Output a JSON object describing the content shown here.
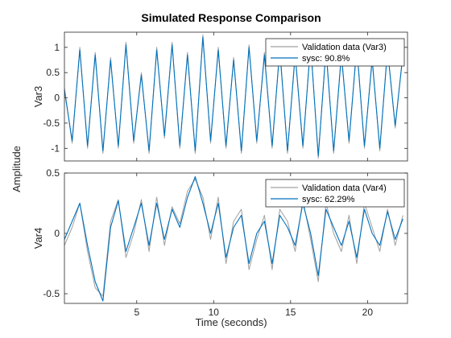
{
  "chart_data": {
    "type": "line",
    "title": "Simulated Response Comparison",
    "xlabel": "Time (seconds)",
    "ylabel": "Amplitude",
    "xlim": [
      0.3,
      22.6
    ],
    "x_ticks": [
      "5",
      "10",
      "15",
      "20"
    ],
    "x_tick_values": [
      5,
      10,
      15,
      20
    ],
    "colors": {
      "validation": "#a0a0a0",
      "model": "#0072bd"
    },
    "panels": [
      {
        "ylabel": "Var3",
        "ylim": [
          -1.25,
          1.3
        ],
        "y_ticks": [
          "1",
          "0.5",
          "0",
          "-0.5",
          "-1"
        ],
        "y_tick_values": [
          1,
          0.5,
          0,
          -0.5,
          -1
        ],
        "legend": [
          "Validation data (Var3)",
          "sysc: 90.8%"
        ],
        "legend_position": "top-right",
        "series": [
          {
            "name": "Validation data (Var3)",
            "x": [
              0.3,
              0.8,
              1.3,
              1.8,
              2.3,
              2.8,
              3.3,
              3.8,
              4.3,
              4.8,
              5.3,
              5.8,
              6.3,
              6.8,
              7.3,
              7.8,
              8.3,
              8.8,
              9.3,
              9.8,
              10.3,
              10.8,
              11.3,
              11.8,
              12.3,
              12.8,
              13.3,
              13.8,
              14.3,
              14.8,
              15.3,
              15.8,
              16.3,
              16.8,
              17.3,
              17.8,
              18.3,
              18.8,
              19.3,
              19.8,
              20.3,
              20.8,
              21.3,
              21.8,
              22.3
            ],
            "y": [
              0.2,
              -0.9,
              1.0,
              -1.0,
              0.9,
              -1.1,
              0.8,
              -1.0,
              1.1,
              -0.9,
              0.5,
              -1.1,
              1.0,
              -0.8,
              1.1,
              -1.0,
              0.9,
              -1.1,
              1.25,
              -0.9,
              1.0,
              -1.0,
              0.8,
              -1.1,
              1.05,
              -0.9,
              0.9,
              -1.0,
              1.0,
              -1.1,
              0.9,
              -1.0,
              1.1,
              -1.2,
              1.0,
              -1.1,
              0.9,
              -0.9,
              1.05,
              -1.0,
              0.8,
              -1.05,
              1.0,
              -0.6,
              0.9
            ]
          },
          {
            "name": "sysc: 90.8%",
            "x": [
              0.3,
              0.8,
              1.3,
              1.8,
              2.3,
              2.8,
              3.3,
              3.8,
              4.3,
              4.8,
              5.3,
              5.8,
              6.3,
              6.8,
              7.3,
              7.8,
              8.3,
              8.8,
              9.3,
              9.8,
              10.3,
              10.8,
              11.3,
              11.8,
              12.3,
              12.8,
              13.3,
              13.8,
              14.3,
              14.8,
              15.3,
              15.8,
              16.3,
              16.8,
              17.3,
              17.8,
              18.3,
              18.8,
              19.3,
              19.8,
              20.3,
              20.8,
              21.3,
              21.8,
              22.3
            ],
            "y": [
              0.15,
              -0.85,
              0.95,
              -0.95,
              0.85,
              -1.05,
              0.75,
              -0.95,
              1.05,
              -0.85,
              0.45,
              -1.05,
              0.95,
              -0.75,
              1.05,
              -0.95,
              0.85,
              -1.05,
              1.2,
              -0.85,
              0.95,
              -0.95,
              0.75,
              -1.05,
              1.0,
              -0.85,
              0.85,
              -0.95,
              0.95,
              -1.05,
              0.85,
              -0.95,
              1.05,
              -1.15,
              0.95,
              -1.05,
              0.85,
              -0.85,
              1.0,
              -0.95,
              0.75,
              -1.0,
              0.95,
              -0.55,
              0.85
            ]
          }
        ]
      },
      {
        "ylabel": "Var4",
        "ylim": [
          -0.58,
          0.5
        ],
        "y_ticks": [
          "0.5",
          "0",
          "-0.5"
        ],
        "y_tick_values": [
          0.5,
          0,
          -0.5
        ],
        "legend": [
          "Validation data (Var4)",
          "sysc: 62.29%"
        ],
        "legend_position": "top-right",
        "series": [
          {
            "name": "Validation data (Var4)",
            "x": [
              0.3,
              0.8,
              1.3,
              1.8,
              2.3,
              2.8,
              3.3,
              3.8,
              4.3,
              4.8,
              5.3,
              5.8,
              6.3,
              6.8,
              7.3,
              7.8,
              8.3,
              8.8,
              9.3,
              9.8,
              10.3,
              10.8,
              11.3,
              11.8,
              12.3,
              12.8,
              13.3,
              13.8,
              14.3,
              14.8,
              15.3,
              15.8,
              16.3,
              16.8,
              17.3,
              17.8,
              18.3,
              18.8,
              19.3,
              19.8,
              20.3,
              20.8,
              21.3,
              21.8,
              22.3
            ],
            "y": [
              -0.1,
              0.05,
              0.25,
              -0.15,
              -0.45,
              -0.52,
              0.1,
              0.28,
              -0.2,
              0.0,
              0.28,
              -0.15,
              0.3,
              -0.1,
              0.22,
              0.08,
              0.35,
              0.45,
              0.3,
              -0.05,
              0.3,
              -0.25,
              0.1,
              0.2,
              -0.3,
              -0.05,
              0.15,
              -0.3,
              0.2,
              0.1,
              -0.15,
              0.28,
              -0.05,
              -0.4,
              0.25,
              0.0,
              -0.15,
              0.15,
              -0.25,
              0.25,
              0.05,
              -0.15,
              0.2,
              -0.1,
              0.15
            ]
          },
          {
            "name": "sysc: 62.29%",
            "x": [
              0.3,
              0.8,
              1.3,
              1.8,
              2.3,
              2.8,
              3.3,
              3.8,
              4.3,
              4.8,
              5.3,
              5.8,
              6.3,
              6.8,
              7.3,
              7.8,
              8.3,
              8.8,
              9.3,
              9.8,
              10.3,
              10.8,
              11.3,
              11.8,
              12.3,
              12.8,
              13.3,
              13.8,
              14.3,
              14.8,
              15.3,
              15.8,
              16.3,
              16.8,
              17.3,
              17.8,
              18.3,
              18.8,
              19.3,
              19.8,
              20.3,
              20.8,
              21.3,
              21.8,
              22.3
            ],
            "y": [
              -0.05,
              0.1,
              0.25,
              -0.1,
              -0.4,
              -0.56,
              0.05,
              0.27,
              -0.15,
              0.05,
              0.25,
              -0.1,
              0.25,
              -0.05,
              0.2,
              0.05,
              0.3,
              0.47,
              0.25,
              0.0,
              0.25,
              -0.2,
              0.05,
              0.15,
              -0.25,
              0.0,
              0.1,
              -0.25,
              0.15,
              0.05,
              -0.1,
              0.25,
              0.0,
              -0.35,
              0.2,
              0.05,
              -0.1,
              0.1,
              -0.2,
              0.2,
              0.0,
              -0.1,
              0.18,
              -0.05,
              0.12
            ]
          }
        ]
      }
    ]
  }
}
